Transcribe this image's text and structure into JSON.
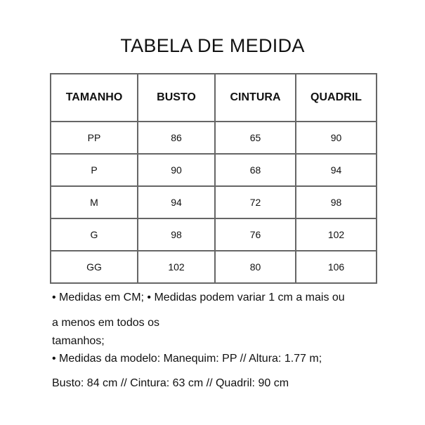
{
  "title": "TABELA DE MEDIDA",
  "table": {
    "headers": [
      "TAMANHO",
      "BUSTO",
      "CINTURA",
      "QUADRIL"
    ],
    "rows": [
      [
        "PP",
        "86",
        "65",
        "90"
      ],
      [
        "P",
        "90",
        "68",
        "94"
      ],
      [
        "M",
        "94",
        "72",
        "98"
      ],
      [
        "G",
        "98",
        "76",
        "102"
      ],
      [
        "GG",
        "102",
        "80",
        "106"
      ]
    ]
  },
  "notes": [
    "• Medidas em CM; • Medidas podem variar 1 cm a mais ou",
    "a menos em todos os",
    "tamanhos;",
    "• Medidas da modelo: Manequim: PP // Altura: 1.77 m;",
    "Busto: 84 cm // Cintura: 63 cm // Quadril: 90 cm"
  ]
}
